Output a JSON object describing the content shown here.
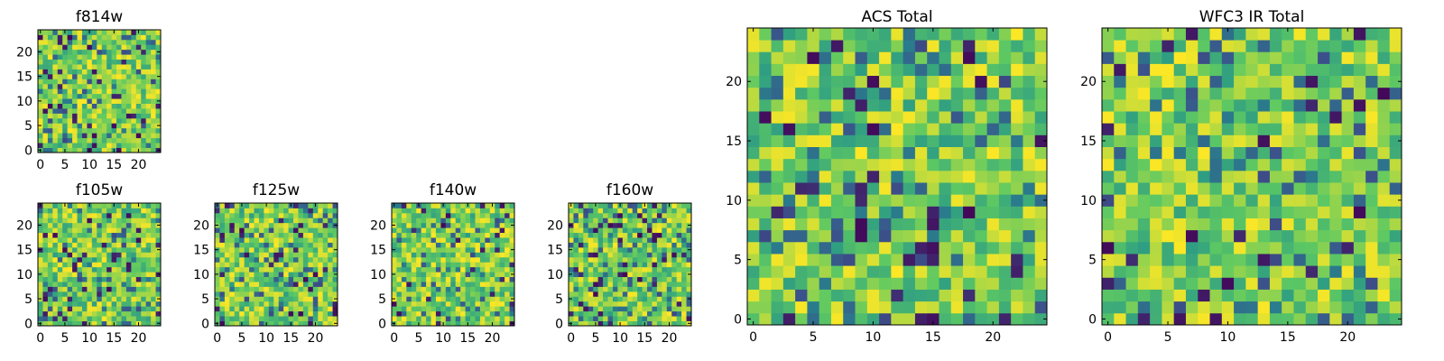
{
  "chart_data": [
    {
      "type": "heatmap",
      "title": "f814w",
      "colormap": "viridis",
      "xlim": [
        -0.5,
        24.5
      ],
      "ylim": [
        -0.5,
        24.5
      ],
      "xticks": [
        "0",
        "5",
        "10",
        "15",
        "20"
      ],
      "yticks": [
        "0",
        "5",
        "10",
        "15",
        "20"
      ],
      "pixel_block": 1
    },
    {
      "type": "heatmap",
      "title": "f105w",
      "colormap": "viridis",
      "xlim": [
        -0.5,
        24.5
      ],
      "ylim": [
        -0.5,
        24.5
      ],
      "xticks": [
        "0",
        "5",
        "10",
        "15",
        "20"
      ],
      "yticks": [
        "0",
        "5",
        "10",
        "15",
        "20"
      ],
      "pixel_block": 1
    },
    {
      "type": "heatmap",
      "title": "f125w",
      "colormap": "viridis",
      "xlim": [
        -0.5,
        24.5
      ],
      "ylim": [
        -0.5,
        24.5
      ],
      "xticks": [
        "0",
        "5",
        "10",
        "15",
        "20"
      ],
      "yticks": [
        "0",
        "5",
        "10",
        "15",
        "20"
      ],
      "pixel_block": 1
    },
    {
      "type": "heatmap",
      "title": "f140w",
      "colormap": "viridis",
      "xlim": [
        -0.5,
        24.5
      ],
      "ylim": [
        -0.5,
        24.5
      ],
      "xticks": [
        "0",
        "5",
        "10",
        "15",
        "20"
      ],
      "yticks": [
        "0",
        "5",
        "10",
        "15",
        "20"
      ],
      "pixel_block": 1
    },
    {
      "type": "heatmap",
      "title": "f160w",
      "colormap": "viridis",
      "xlim": [
        -0.5,
        24.5
      ],
      "ylim": [
        -0.5,
        24.5
      ],
      "xticks": [
        "0",
        "5",
        "10",
        "15",
        "20"
      ],
      "yticks": [
        "0",
        "5",
        "10",
        "15",
        "20"
      ],
      "pixel_block": 1
    },
    {
      "type": "heatmap",
      "title": "ACS Total",
      "colormap": "viridis",
      "xlim": [
        -0.5,
        24.5
      ],
      "ylim": [
        -0.5,
        24.5
      ],
      "xticks": [
        "0",
        "5",
        "10",
        "15",
        "20"
      ],
      "yticks": [
        "0",
        "5",
        "10",
        "15",
        "20"
      ],
      "pixel_block": 1
    },
    {
      "type": "heatmap",
      "title": "WFC3 IR Total",
      "colormap": "viridis",
      "xlim": [
        -0.5,
        24.5
      ],
      "ylim": [
        -0.5,
        24.5
      ],
      "xticks": [
        "0",
        "5",
        "10",
        "15",
        "20"
      ],
      "yticks": [
        "0",
        "5",
        "10",
        "15",
        "20"
      ],
      "pixel_block": 1
    }
  ],
  "colors": {
    "viridis_stops": [
      "#440154",
      "#3b528b",
      "#21918c",
      "#5ec962",
      "#fde725"
    ],
    "axis": "#000000",
    "background": "#ffffff"
  }
}
